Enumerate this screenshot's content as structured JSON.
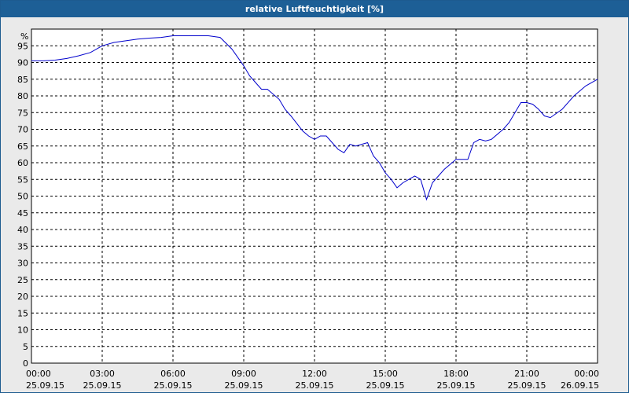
{
  "colors": {
    "title_bar": "#1d5f96",
    "plot_bg": "#ffffff",
    "frame_bg": "#eaeaea",
    "grid": "#000000",
    "series": "#0000cc"
  },
  "chart_data": {
    "type": "line",
    "title": "relative Luftfeuchtigkeit [%]",
    "ylabel": "%",
    "xlabel": "",
    "ylim": [
      0,
      100
    ],
    "yticks": [
      0,
      5,
      10,
      15,
      20,
      25,
      30,
      35,
      40,
      45,
      50,
      55,
      60,
      65,
      70,
      75,
      80,
      85,
      90,
      95
    ],
    "xlim_hours": [
      0,
      24
    ],
    "xticks": [
      {
        "hour": 0,
        "time": "00:00",
        "date": "25.09.15"
      },
      {
        "hour": 3,
        "time": "03:00",
        "date": "25.09.15"
      },
      {
        "hour": 6,
        "time": "06:00",
        "date": "25.09.15"
      },
      {
        "hour": 9,
        "time": "09:00",
        "date": "25.09.15"
      },
      {
        "hour": 12,
        "time": "12:00",
        "date": "25.09.15"
      },
      {
        "hour": 15,
        "time": "15:00",
        "date": "25.09.15"
      },
      {
        "hour": 18,
        "time": "18:00",
        "date": "25.09.15"
      },
      {
        "hour": 21,
        "time": "21:00",
        "date": "25.09.15"
      },
      {
        "hour": 24,
        "time": "00:00",
        "date": "26.09.15"
      }
    ],
    "grid": true,
    "grid_style": "dashed",
    "legend": "none",
    "series": [
      {
        "x": [
          0,
          0.5,
          1,
          1.5,
          2,
          2.5,
          3,
          3.5,
          4,
          4.5,
          5,
          5.5,
          6,
          6.5,
          7,
          7.5,
          8,
          8.5,
          9,
          9.25,
          9.5,
          9.75,
          10,
          10.5,
          10.75,
          11,
          11.5,
          11.75,
          12,
          12.25,
          12.5,
          12.75,
          13,
          13.25,
          13.5,
          13.75,
          14,
          14.25,
          14.5,
          14.75,
          15,
          15.25,
          15.5,
          15.75,
          16,
          16.25,
          16.5,
          16.75,
          17,
          17.5,
          18,
          18.5,
          18.75,
          19,
          19.25,
          19.5,
          20,
          20.25,
          20.5,
          20.75,
          21,
          21.25,
          21.5,
          21.75,
          22,
          22.5,
          23,
          23.5,
          24
        ],
        "y": [
          90.5,
          90.5,
          90.7,
          91.2,
          92,
          93,
          95,
          96,
          96.5,
          97,
          97.3,
          97.5,
          98,
          98,
          98,
          98,
          97.5,
          94,
          89,
          86,
          84,
          82,
          82,
          79,
          76,
          74,
          69.5,
          68,
          67,
          68,
          68,
          66,
          64,
          63,
          65.5,
          65,
          65.5,
          66,
          62,
          60,
          57,
          55,
          52.5,
          54,
          55,
          56,
          55,
          49,
          54,
          58,
          61,
          61,
          66,
          67,
          66.5,
          67,
          70,
          72,
          75,
          78,
          78,
          77.5,
          76,
          74,
          73.5,
          76,
          80,
          83,
          85
        ]
      }
    ]
  }
}
